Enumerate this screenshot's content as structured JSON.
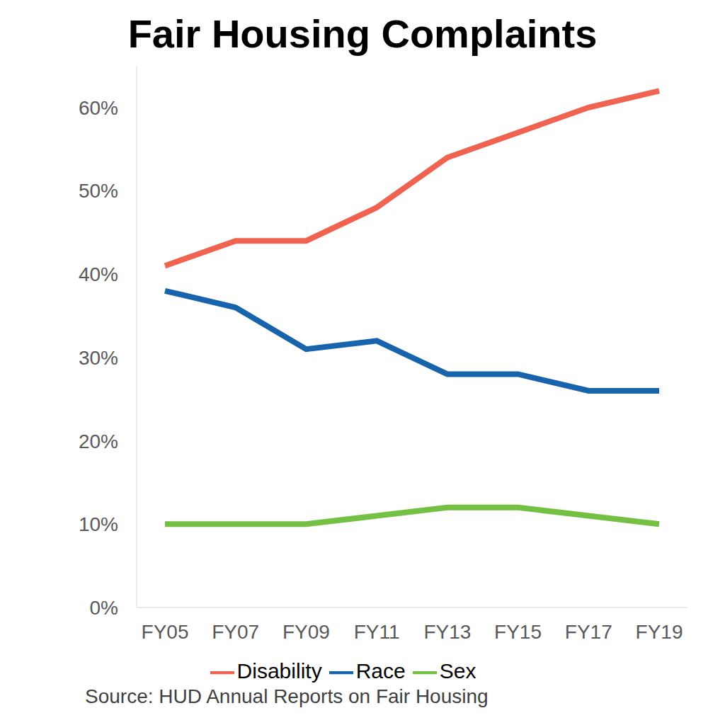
{
  "chart_data": {
    "type": "line",
    "title": "Fair Housing Complaints",
    "source": "Source: HUD Annual Reports on Fair Housing",
    "categories": [
      "FY05",
      "FY07",
      "FY09",
      "FY11",
      "FY13",
      "FY15",
      "FY17",
      "FY19"
    ],
    "series": [
      {
        "name": "Disability",
        "color": "#ef6350",
        "values": [
          41,
          44,
          44,
          48,
          54,
          57,
          60,
          62
        ]
      },
      {
        "name": "Race",
        "color": "#1764ad",
        "values": [
          38,
          36,
          31,
          32,
          28,
          28,
          26,
          26
        ]
      },
      {
        "name": "Sex",
        "color": "#74c043",
        "values": [
          10,
          10,
          10,
          11,
          12,
          12,
          11,
          10
        ]
      }
    ],
    "ylim": [
      0,
      65
    ],
    "yticks": [
      {
        "value": 0,
        "label": "0%"
      },
      {
        "value": 10,
        "label": "10%"
      },
      {
        "value": 20,
        "label": "20%"
      },
      {
        "value": 30,
        "label": "30%"
      },
      {
        "value": 40,
        "label": "40%"
      },
      {
        "value": 50,
        "label": "50%"
      },
      {
        "value": 60,
        "label": "60%"
      }
    ],
    "grid": false,
    "legend": "bottom",
    "marker": "none"
  }
}
